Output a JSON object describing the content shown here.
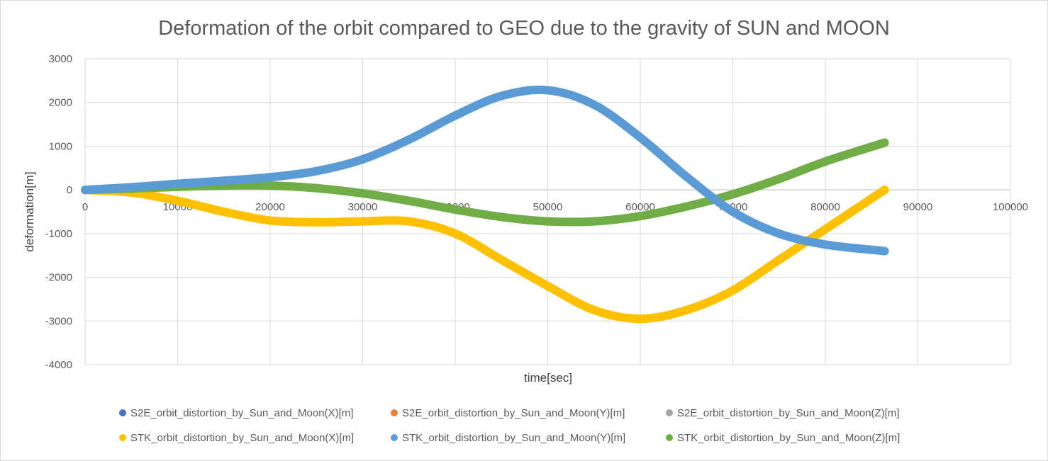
{
  "chart_data": {
    "type": "scatter",
    "title": "Deformation of the orbit compared to GEO due to the gravity of SUN and MOON",
    "xlabel": "time[sec]",
    "ylabel": "deformation[m]",
    "xlim": [
      0,
      100000
    ],
    "ylim": [
      -4000,
      3000
    ],
    "x_ticks": [
      0,
      10000,
      20000,
      30000,
      40000,
      50000,
      60000,
      70000,
      80000,
      90000,
      100000
    ],
    "y_ticks": [
      3000,
      2000,
      1000,
      0,
      -1000,
      -2000,
      -3000,
      -4000
    ],
    "grid": true,
    "legend_position": "bottom",
    "series": [
      {
        "name": "S2E_orbit_distortion_by_Sun_and_Moon(X)[m]",
        "color": "#4472C4",
        "x": [],
        "y": []
      },
      {
        "name": "S2E_orbit_distortion_by_Sun_and_Moon(Y)[m]",
        "color": "#ED7D31",
        "x": [],
        "y": []
      },
      {
        "name": "S2E_orbit_distortion_by_Sun_and_Moon(Z)[m]",
        "color": "#A5A5A5",
        "x": [],
        "y": []
      },
      {
        "name": "STK_orbit_distortion_by_Sun_and_Moon(X)[m]",
        "color": "#FFC000",
        "x": [
          0,
          5000,
          10000,
          15000,
          20000,
          25000,
          30000,
          35000,
          40000,
          45000,
          50000,
          55000,
          60000,
          65000,
          70000,
          75000,
          80000,
          86400
        ],
        "y": [
          0,
          -60,
          -250,
          -500,
          -700,
          -740,
          -720,
          -720,
          -1000,
          -1600,
          -2200,
          -2750,
          -2950,
          -2750,
          -2300,
          -1600,
          -900,
          0
        ]
      },
      {
        "name": "STK_orbit_distortion_by_Sun_and_Moon(Y)[m]",
        "color": "#5B9BD5",
        "x": [
          0,
          5000,
          10000,
          15000,
          20000,
          25000,
          30000,
          35000,
          40000,
          45000,
          50000,
          55000,
          60000,
          65000,
          70000,
          75000,
          80000,
          86400
        ],
        "y": [
          0,
          60,
          140,
          210,
          290,
          430,
          700,
          1150,
          1700,
          2150,
          2280,
          1950,
          1200,
          300,
          -500,
          -1000,
          -1250,
          -1400
        ]
      },
      {
        "name": "STK_orbit_distortion_by_Sun_and_Moon(Z)[m]",
        "color": "#70AD47",
        "x": [
          0,
          5000,
          10000,
          15000,
          20000,
          25000,
          30000,
          35000,
          40000,
          45000,
          50000,
          55000,
          60000,
          65000,
          70000,
          75000,
          80000,
          86400
        ],
        "y": [
          0,
          30,
          70,
          100,
          100,
          40,
          -80,
          -250,
          -450,
          -620,
          -720,
          -720,
          -600,
          -380,
          -100,
          250,
          650,
          1080
        ]
      }
    ]
  }
}
